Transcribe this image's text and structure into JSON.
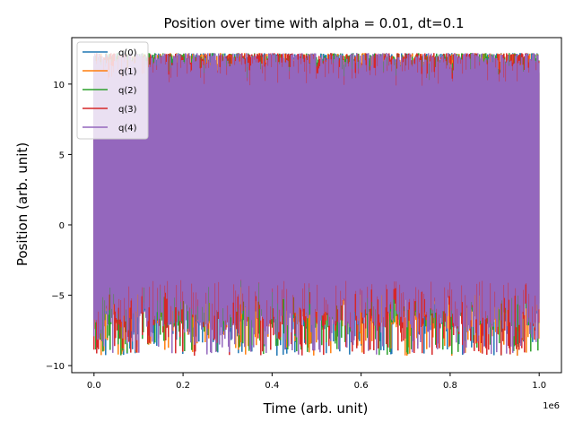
{
  "chart_data": {
    "type": "line",
    "title": "Position over time with alpha = 0.01, dt=0.1",
    "xlabel": "Time (arb. unit)",
    "ylabel": "Position (arb. unit)",
    "x_offset_text": "1e6",
    "xlim": [
      -0.05,
      1.05
    ],
    "ylim": [
      -10.5,
      13.3
    ],
    "xticks": [
      {
        "value": 0.0,
        "label": "0.0"
      },
      {
        "value": 0.2,
        "label": "0.2"
      },
      {
        "value": 0.4,
        "label": "0.4"
      },
      {
        "value": 0.6,
        "label": "0.6"
      },
      {
        "value": 0.8,
        "label": "0.8"
      },
      {
        "value": 1.0,
        "label": "1.0"
      }
    ],
    "yticks": [
      {
        "value": -10,
        "label": "−10"
      },
      {
        "value": -5,
        "label": "−5"
      },
      {
        "value": 0,
        "label": "0"
      },
      {
        "value": 5,
        "label": "5"
      },
      {
        "value": 10,
        "label": "10"
      }
    ],
    "grid": false,
    "legend_position": "upper-left",
    "series": [
      {
        "name": "q(0)",
        "color": "#1f77b4",
        "x_range": [
          0,
          1.0
        ],
        "y_range": [
          -9.3,
          12.2
        ]
      },
      {
        "name": "q(1)",
        "color": "#ff7f0e",
        "x_range": [
          0,
          1.0
        ],
        "y_range": [
          -9.3,
          12.2
        ]
      },
      {
        "name": "q(2)",
        "color": "#2ca02c",
        "x_range": [
          0,
          1.0
        ],
        "y_range": [
          -9.3,
          12.2
        ]
      },
      {
        "name": "q(3)",
        "color": "#d62728",
        "x_range": [
          0,
          1.0
        ],
        "y_range": [
          -9.3,
          12.2
        ]
      },
      {
        "name": "q(4)",
        "color": "#9467bd",
        "x_range": [
          0,
          1.0
        ],
        "y_range": [
          -9.3,
          12.2
        ]
      }
    ]
  }
}
